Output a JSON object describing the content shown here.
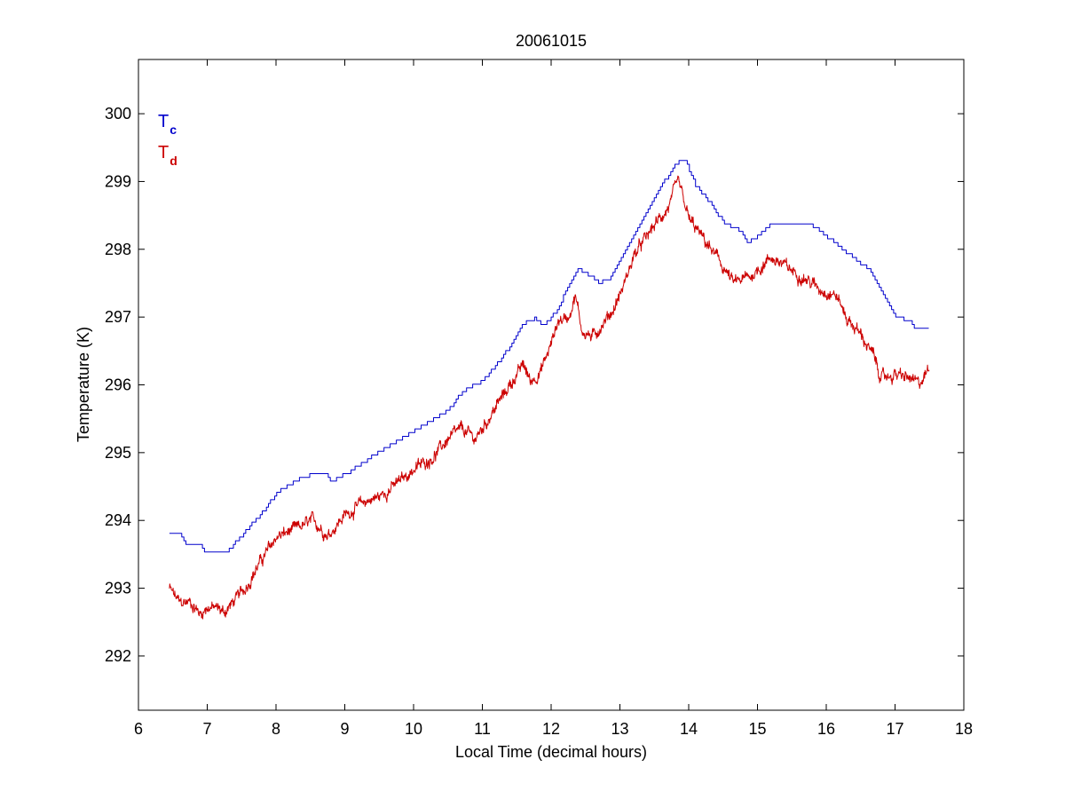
{
  "chart_data": {
    "type": "line",
    "title": "20061015",
    "xlabel": "Local Time (decimal hours)",
    "ylabel": "Temperature (K)",
    "xlim": [
      6,
      18
    ],
    "ylim": [
      291.2,
      300.8
    ],
    "xticks": [
      6,
      7,
      8,
      9,
      10,
      11,
      12,
      13,
      14,
      15,
      16,
      17,
      18
    ],
    "yticks": [
      292,
      293,
      294,
      295,
      296,
      297,
      298,
      299,
      300
    ],
    "grid": false,
    "legend_position": "top-left",
    "series": [
      {
        "name": "T_c",
        "label_main": "T",
        "label_sub": "c",
        "color": "#0000cc",
        "style": "stepped",
        "x": [
          6.45,
          6.6,
          6.65,
          6.9,
          6.95,
          7.3,
          7.5,
          7.8,
          8.0,
          8.3,
          8.5,
          8.75,
          8.8,
          8.95,
          9.0,
          9.5,
          10.0,
          10.5,
          10.7,
          11.0,
          11.3,
          11.6,
          11.75,
          11.9,
          12.1,
          12.25,
          12.4,
          12.55,
          12.7,
          12.85,
          13.1,
          13.4,
          13.6,
          13.85,
          13.95,
          14.1,
          14.3,
          14.5,
          14.75,
          14.85,
          15.0,
          15.2,
          15.5,
          15.8,
          16.1,
          16.3,
          16.6,
          16.8,
          17.0,
          17.2,
          17.3,
          17.5
        ],
        "y": [
          293.8,
          293.8,
          293.68,
          293.62,
          293.55,
          293.55,
          293.78,
          294.12,
          294.4,
          294.6,
          294.67,
          294.67,
          294.55,
          294.67,
          294.67,
          295.02,
          295.32,
          295.62,
          295.9,
          296.06,
          296.42,
          296.9,
          296.98,
          296.88,
          297.12,
          297.48,
          297.72,
          297.62,
          297.5,
          297.58,
          298.05,
          298.55,
          298.95,
          299.3,
          299.3,
          298.95,
          298.7,
          298.4,
          298.28,
          298.08,
          298.2,
          298.37,
          298.37,
          298.35,
          298.12,
          297.95,
          297.72,
          297.4,
          297.0,
          296.95,
          296.84,
          296.84
        ]
      },
      {
        "name": "T_d",
        "label_main": "T",
        "label_sub": "d",
        "color": "#cc0000",
        "style": "noisy",
        "x": [
          6.45,
          6.6,
          6.75,
          6.9,
          7.0,
          7.15,
          7.25,
          7.4,
          7.55,
          7.75,
          8.0,
          8.3,
          8.55,
          8.75,
          9.0,
          9.3,
          9.5,
          9.7,
          10.0,
          10.3,
          10.5,
          10.7,
          10.9,
          11.15,
          11.4,
          11.6,
          11.7,
          11.85,
          12.0,
          12.1,
          12.25,
          12.35,
          12.45,
          12.6,
          12.75,
          12.9,
          13.05,
          13.2,
          13.5,
          13.7,
          13.85,
          14.0,
          14.25,
          14.45,
          14.65,
          14.9,
          15.2,
          15.45,
          15.65,
          15.9,
          16.15,
          16.3,
          16.5,
          16.7,
          16.8,
          17.0,
          17.2,
          17.35,
          17.5
        ],
        "y": [
          293.0,
          292.78,
          292.8,
          292.62,
          292.72,
          292.7,
          292.65,
          292.82,
          293.0,
          293.35,
          293.75,
          293.88,
          294.0,
          293.78,
          294.08,
          294.28,
          294.35,
          294.5,
          294.75,
          294.95,
          295.2,
          295.35,
          295.2,
          295.6,
          296.0,
          296.3,
          296.05,
          296.2,
          296.6,
          296.95,
          297.0,
          297.32,
          296.8,
          296.7,
          296.9,
          297.1,
          297.45,
          297.9,
          298.35,
          298.6,
          299.0,
          298.45,
          298.1,
          297.82,
          297.5,
          297.6,
          297.88,
          297.72,
          297.6,
          297.42,
          297.32,
          296.98,
          296.75,
          296.4,
          296.1,
          296.15,
          296.1,
          296.0,
          296.25
        ]
      }
    ]
  }
}
